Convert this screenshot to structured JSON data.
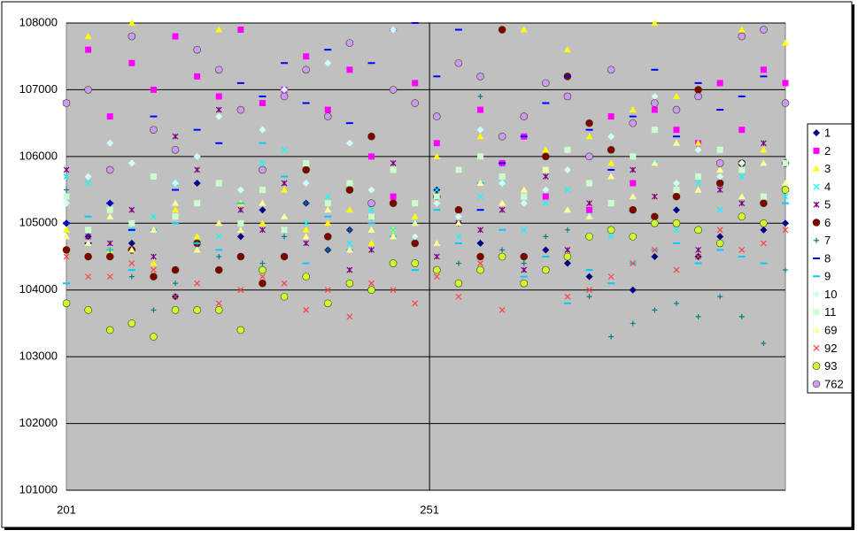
{
  "chart_data": {
    "type": "scatter",
    "x": [
      201,
      204,
      207,
      210,
      213,
      216,
      219,
      222,
      225,
      228,
      231,
      234,
      237,
      240,
      243,
      246,
      249,
      252,
      255,
      258,
      261,
      264,
      267,
      270,
      273,
      276,
      279,
      282,
      285,
      288,
      291,
      294,
      297,
      300
    ],
    "xlim": [
      201,
      300
    ],
    "xticks": [
      201,
      251
    ],
    "ylim": [
      101000,
      108000
    ],
    "yticks": [
      101000,
      102000,
      103000,
      104000,
      105000,
      106000,
      107000,
      108000
    ],
    "grid": true,
    "legend": "right",
    "series": [
      {
        "name": "1",
        "color": "#000080",
        "marker": "diamond",
        "values": [
          105000,
          104800,
          105300,
          104700,
          104200,
          103900,
          105600,
          104300,
          104800,
          105200,
          104900,
          105300,
          104600,
          104900,
          105100,
          104400,
          104800,
          105500,
          105000,
          104700,
          104500,
          104100,
          104600,
          104400,
          104200,
          104900,
          104000,
          104500,
          105200,
          104500,
          104800,
          105100,
          104900,
          105000
        ]
      },
      {
        "name": "2",
        "color": "#ff00ff",
        "marker": "square",
        "values": [
          106800,
          107600,
          106600,
          107400,
          107000,
          107800,
          107200,
          106900,
          107900,
          106800,
          107000,
          107500,
          106700,
          107300,
          106000,
          105400,
          107100,
          106200,
          105800,
          106700,
          105900,
          106300,
          105400,
          106900,
          105200,
          106600,
          105600,
          106700,
          106400,
          106200,
          107100,
          106400,
          107300,
          107100
        ]
      },
      {
        "name": "3",
        "color": "#ffff00",
        "marker": "triangle",
        "values": [
          104900,
          107800,
          104600,
          108000,
          104400,
          105200,
          104800,
          107900,
          105300,
          105000,
          105500,
          104900,
          105000,
          105200,
          104700,
          104900,
          105100,
          106000,
          105800,
          106300,
          105600,
          107900,
          106100,
          107600,
          106300,
          105900,
          106700,
          108000,
          106900,
          106200,
          105800,
          107900,
          106100,
          107700
        ]
      },
      {
        "name": "4",
        "color": "#00ffff",
        "marker": "x",
        "values": [
          105700,
          105600,
          105800,
          104900,
          105100,
          105600,
          105300,
          104800,
          105200,
          105900,
          106100,
          105000,
          105400,
          104700,
          105200,
          104900,
          105000,
          105500,
          104800,
          105400,
          105600,
          104900,
          105300,
          105500,
          105100,
          104800,
          105200,
          105900,
          104900,
          105600,
          105200,
          105700,
          105400,
          105400
        ]
      },
      {
        "name": "5",
        "color": "#800080",
        "marker": "star",
        "values": [
          105800,
          104800,
          104700,
          105200,
          104500,
          106300,
          105800,
          106700,
          105200,
          104900,
          105600,
          104700,
          105300,
          104300,
          104600,
          105900,
          105300,
          104500,
          105000,
          104900,
          105200,
          104300,
          105700,
          104600,
          105300,
          104900,
          105800,
          105400,
          105000,
          104600,
          105500,
          105300,
          106200,
          105900
        ]
      },
      {
        "name": "6",
        "color": "#800000",
        "marker": "circle",
        "values": [
          104600,
          104500,
          104500,
          104600,
          104200,
          104300,
          104700,
          104300,
          104500,
          104100,
          104500,
          105800,
          104800,
          105500,
          106300,
          105300,
          104700,
          105400,
          105200,
          104500,
          107900,
          104500,
          106000,
          107200,
          106500,
          106100,
          105200,
          105100,
          105400,
          107000,
          105600,
          105900,
          105300,
          105900
        ]
      },
      {
        "name": "7",
        "color": "#008080",
        "marker": "plus",
        "values": [
          105500,
          104700,
          104600,
          104200,
          103700,
          104100,
          104700,
          104500,
          104900,
          104400,
          104800,
          105300,
          104600,
          104900,
          105500,
          104400,
          104800,
          104700,
          104400,
          106900,
          104600,
          104400,
          104800,
          104900,
          103900,
          103300,
          103500,
          103700,
          103800,
          103600,
          103900,
          103600,
          103200,
          104300
        ]
      },
      {
        "name": "8",
        "color": "#0000ff",
        "marker": "dash",
        "values": [
          105000,
          104700,
          105300,
          104900,
          106600,
          105500,
          106400,
          106200,
          107100,
          106900,
          107400,
          106800,
          107600,
          106500,
          107400,
          107900,
          108000,
          107200,
          107900,
          105200,
          105900,
          106300,
          106800,
          107200,
          106400,
          105800,
          106600,
          107300,
          106300,
          107100,
          106700,
          106900,
          107200,
          105900
        ]
      },
      {
        "name": "9",
        "color": "#00ccff",
        "marker": "dash",
        "values": [
          104100,
          105100,
          104600,
          104300,
          104900,
          105000,
          104700,
          104600,
          105300,
          106200,
          105700,
          104400,
          105100,
          104600,
          105000,
          104800,
          104300,
          105200,
          104700,
          105600,
          104900,
          104200,
          104500,
          103800,
          104300,
          104100,
          104400,
          104600,
          104700,
          104400,
          104600,
          104500,
          104400,
          105300
        ]
      },
      {
        "name": "10",
        "color": "#ccffff",
        "marker": "diamond",
        "values": [
          105300,
          105700,
          106200,
          105900,
          106400,
          105600,
          106000,
          106600,
          105500,
          106400,
          107000,
          105600,
          107400,
          106200,
          105500,
          107900,
          104800,
          105300,
          105100,
          106400,
          105600,
          105300,
          105500,
          105800,
          105600,
          106300,
          106500,
          106900,
          105600,
          106100,
          105700,
          105900,
          107900,
          106800
        ]
      },
      {
        "name": "11",
        "color": "#ccffcc",
        "marker": "square",
        "values": [
          105400,
          104900,
          105200,
          105000,
          105700,
          105100,
          105300,
          105600,
          105000,
          105500,
          104900,
          105900,
          105300,
          105600,
          105100,
          105800,
          105300,
          105400,
          105800,
          106000,
          105700,
          105400,
          105800,
          106100,
          105600,
          105300,
          106000,
          106400,
          105500,
          105700,
          106100,
          105800,
          105400,
          105900
        ]
      },
      {
        "name": "69",
        "color": "#ffff99",
        "marker": "triangle",
        "values": [
          104800,
          104700,
          105100,
          104600,
          104900,
          105300,
          104600,
          105000,
          104900,
          105300,
          105100,
          104800,
          105200,
          104600,
          104900,
          104800,
          105000,
          104700,
          105000,
          105600,
          105300,
          105500,
          105800,
          105200,
          105100,
          105700,
          105400,
          105900,
          106200,
          105500,
          105800,
          105400,
          105900,
          105600
        ]
      },
      {
        "name": "92",
        "color": "#ff4040",
        "marker": "x",
        "values": [
          104500,
          104200,
          104200,
          104400,
          104300,
          103900,
          104100,
          103800,
          104000,
          104200,
          104100,
          103700,
          104000,
          103600,
          104100,
          104000,
          103800,
          104200,
          103900,
          104400,
          103700,
          104100,
          104300,
          103900,
          104000,
          104200,
          104400,
          104600,
          104300,
          104500,
          104900,
          104600,
          104700,
          104900
        ]
      },
      {
        "name": "93",
        "color": "#ccff33",
        "marker": "circle",
        "values": [
          103800,
          103700,
          103400,
          103500,
          103300,
          103700,
          103700,
          103700,
          103400,
          104300,
          103900,
          104200,
          103800,
          104100,
          104000,
          104400,
          104400,
          104300,
          104100,
          104300,
          104500,
          104100,
          104300,
          104500,
          104800,
          104900,
          104800,
          105000,
          105000,
          104900,
          104700,
          105100,
          105000,
          105500
        ]
      },
      {
        "name": "762",
        "color": "#cc99ff",
        "marker": "circle",
        "values": [
          106800,
          107000,
          105800,
          107800,
          106400,
          106100,
          107600,
          107300,
          106700,
          105800,
          106900,
          107300,
          106600,
          107700,
          105300,
          107000,
          106800,
          106600,
          107400,
          107200,
          106300,
          106600,
          107100,
          106900,
          106000,
          107300,
          106500,
          106800,
          106700,
          106900,
          105900,
          107800,
          107900,
          106800
        ]
      }
    ]
  }
}
